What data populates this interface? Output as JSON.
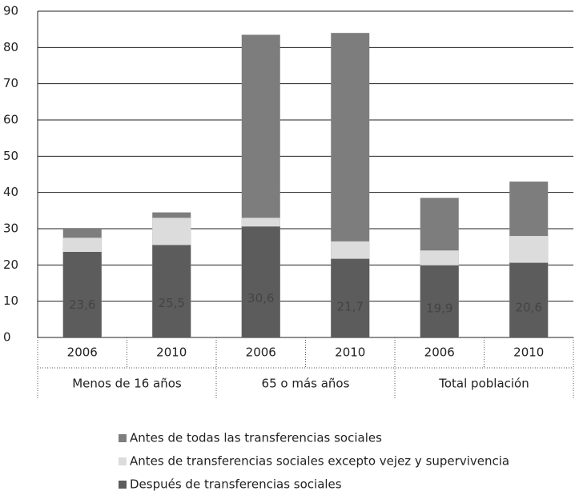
{
  "chart_data": {
    "type": "bar",
    "overlay": true,
    "categories": [
      "2006",
      "2010",
      "2006",
      "2010",
      "2006",
      "2010"
    ],
    "groups": [
      "Menos de 16 años",
      "65 o más años",
      "Total población"
    ],
    "series": [
      {
        "name": "Antes de todas las transferencias sociales",
        "color": "#7d7d7d",
        "values": [
          30,
          34.5,
          83.5,
          84,
          38.5,
          43
        ]
      },
      {
        "name": "Antes de transferencias sociales excepto vejez y supervivencia",
        "color": "#dcdcdc",
        "values": [
          27.5,
          33,
          33,
          26.5,
          24,
          28
        ]
      },
      {
        "name": "Después de transferencias sociales",
        "color": "#5c5c5c",
        "values": [
          23.6,
          25.5,
          30.6,
          21.7,
          19.9,
          20.6
        ],
        "value_labels": [
          "23,6",
          "25,5",
          "30,6",
          "21,7",
          "19,9",
          "20,6"
        ]
      }
    ],
    "ylim": [
      0,
      90
    ],
    "yticks": [
      0,
      10,
      20,
      30,
      40,
      50,
      60,
      70,
      80,
      90
    ],
    "grid": true,
    "legend": "bottom"
  }
}
